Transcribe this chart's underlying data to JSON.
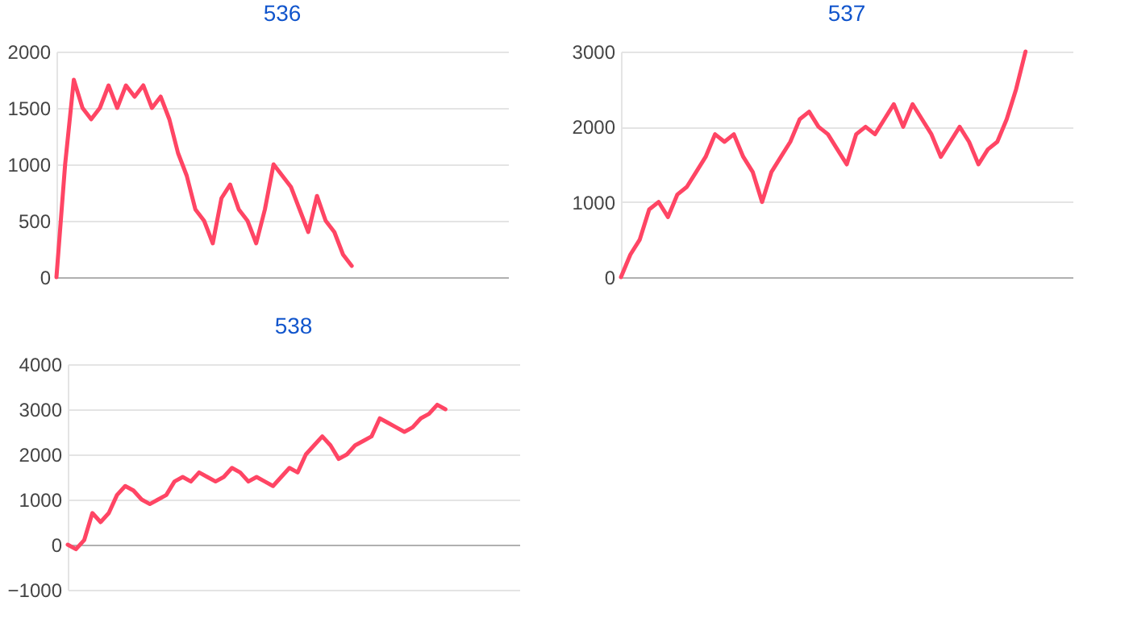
{
  "chart_data": [
    {
      "type": "line",
      "title": "536",
      "categories": [
        null,
        null,
        null,
        null,
        null,
        null,
        null,
        null,
        null,
        null,
        null,
        null,
        null,
        null,
        null,
        null,
        null,
        null,
        null,
        null,
        null,
        null,
        null,
        null,
        null,
        null,
        null,
        null,
        null,
        null,
        null,
        null,
        null,
        null,
        null,
        null,
        null,
        null,
        null,
        null,
        null,
        null,
        null,
        null,
        null,
        null,
        null,
        null,
        null,
        null,
        null,
        null,
        null
      ],
      "series": [
        {
          "color": "#ff4564",
          "values": [
            0,
            1000,
            1750,
            1500,
            1400,
            1500,
            1700,
            1500,
            1700,
            1600,
            1700,
            1500,
            1600,
            1400,
            1100,
            900,
            600,
            500,
            300,
            700,
            820,
            600,
            500,
            300,
            600,
            1000,
            900,
            800,
            600,
            400,
            720,
            500,
            400,
            200,
            100,
            null,
            null,
            null,
            null,
            null,
            null,
            null,
            null,
            null,
            null,
            null,
            null,
            null,
            null,
            null,
            null,
            null,
            null
          ]
        }
      ],
      "ylim": [
        0,
        2000
      ],
      "yticks": [
        0,
        500,
        1000,
        1500,
        2000
      ],
      "grid": "y",
      "tick_labels": "y"
    },
    {
      "type": "line",
      "title": "537",
      "categories": [
        null,
        null,
        null,
        null,
        null,
        null,
        null,
        null,
        null,
        null,
        null,
        null,
        null,
        null,
        null,
        null,
        null,
        null,
        null,
        null,
        null,
        null,
        null,
        null,
        null,
        null,
        null,
        null,
        null,
        null,
        null,
        null,
        null,
        null,
        null,
        null,
        null,
        null,
        null,
        null,
        null,
        null,
        null,
        null,
        null,
        null,
        null,
        null,
        null
      ],
      "series": [
        {
          "color": "#ff4564",
          "values": [
            0,
            300,
            500,
            900,
            1000,
            800,
            1100,
            1200,
            1400,
            1600,
            1900,
            1800,
            1900,
            1600,
            1400,
            1000,
            1400,
            1600,
            1800,
            2100,
            2200,
            2000,
            1900,
            1700,
            1500,
            1900,
            2000,
            1900,
            2100,
            2300,
            2000,
            2300,
            2100,
            1900,
            1600,
            1800,
            2000,
            1800,
            1500,
            1700,
            1800,
            2100,
            2500,
            3000,
            null,
            null,
            null,
            null,
            null
          ]
        }
      ],
      "ylim": [
        0,
        3000
      ],
      "yticks": [
        0,
        1000,
        2000,
        3000
      ],
      "grid": "y",
      "tick_labels": "y"
    },
    {
      "type": "line",
      "title": "538",
      "categories": [
        null,
        null,
        null,
        null,
        null,
        null,
        null,
        null,
        null,
        null,
        null,
        null,
        null,
        null,
        null,
        null,
        null,
        null,
        null,
        null,
        null,
        null,
        null,
        null,
        null,
        null,
        null,
        null,
        null,
        null,
        null,
        null,
        null,
        null,
        null,
        null,
        null,
        null,
        null,
        null,
        null,
        null,
        null,
        null,
        null,
        null,
        null,
        null,
        null,
        null,
        null,
        null,
        null,
        null,
        null,
        null
      ],
      "series": [
        {
          "color": "#ff4564",
          "values": [
            0,
            -100,
            100,
            700,
            500,
            700,
            1100,
            1300,
            1200,
            1000,
            900,
            1000,
            1100,
            1400,
            1500,
            1400,
            1600,
            1500,
            1400,
            1500,
            1700,
            1600,
            1400,
            1500,
            1400,
            1300,
            1500,
            1700,
            1600,
            2000,
            2200,
            2400,
            2200,
            1900,
            2000,
            2200,
            2300,
            2400,
            2800,
            2700,
            2600,
            2500,
            2600,
            2800,
            2900,
            3100,
            3000,
            null,
            null,
            null,
            null,
            null,
            null,
            null,
            null,
            null
          ]
        }
      ],
      "ylim": [
        -1000,
        4000
      ],
      "yticks": [
        -1000,
        0,
        1000,
        2000,
        3000,
        4000
      ],
      "grid": "y",
      "tick_labels": "y"
    }
  ]
}
